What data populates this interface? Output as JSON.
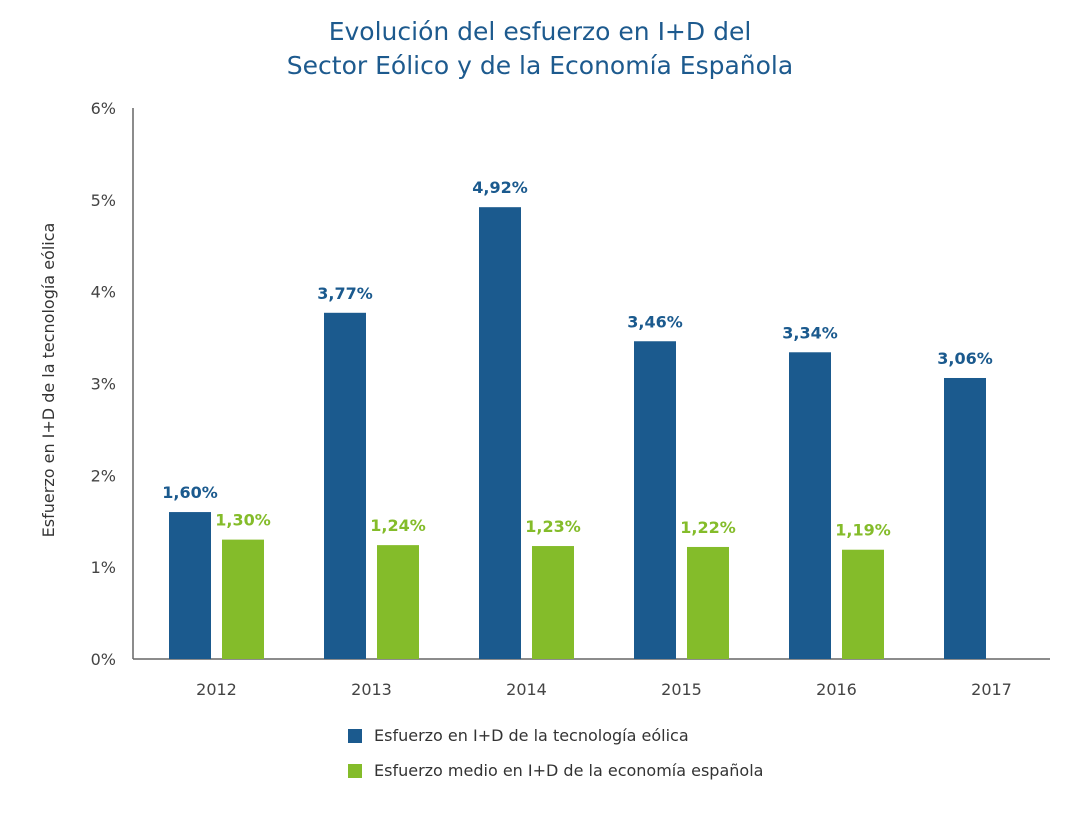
{
  "chart_data": {
    "type": "bar",
    "title_line1": "Evolución del esfuerzo en I+D del",
    "title_line2": "Sector Eólico y de la Economía Española",
    "xlabel": "",
    "ylabel": "Esfuerzo en I+D de la tecnología eólica",
    "ylim": [
      0,
      6
    ],
    "yticks": [
      "0%",
      "1%",
      "2%",
      "3%",
      "4%",
      "5%",
      "6%"
    ],
    "grid": false,
    "legend_position": "bottom",
    "categories": [
      "2012",
      "2013",
      "2014",
      "2015",
      "2016",
      "2017"
    ],
    "series": [
      {
        "name": "Esfuerzo en I+D de la tecnología eólica",
        "color": "#1b5a8e",
        "values": [
          1.6,
          3.77,
          4.92,
          3.46,
          3.34,
          3.06
        ],
        "labels": [
          "1,60%",
          "3,77%",
          "4,92%",
          "3,46%",
          "3,34%",
          "3,06%"
        ]
      },
      {
        "name": "Esfuerzo medio en I+D de la economía española",
        "color": "#84bc2a",
        "values": [
          1.3,
          1.24,
          1.23,
          1.22,
          1.19,
          null
        ],
        "labels": [
          "1,30%",
          "1,24%",
          "1,23%",
          "1,22%",
          "1,19%",
          null
        ]
      }
    ]
  }
}
